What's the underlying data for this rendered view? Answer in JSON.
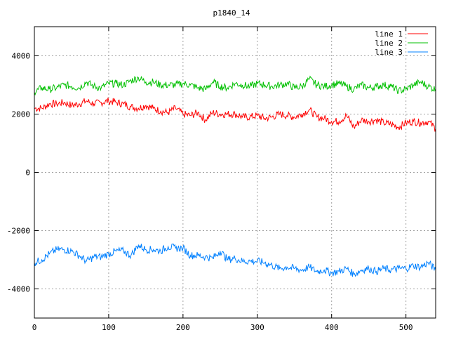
{
  "chart_data": {
    "type": "line",
    "title": "p1840_14",
    "xlabel": "",
    "ylabel": "",
    "xlim": [
      0,
      540
    ],
    "ylim": [
      -5000,
      5000
    ],
    "xticks": [
      0,
      100,
      200,
      300,
      400,
      500
    ],
    "yticks": [
      -4000,
      -2000,
      0,
      2000,
      4000
    ],
    "grid": true,
    "legend_position": "top-right",
    "x": [
      0,
      10,
      20,
      30,
      40,
      50,
      60,
      70,
      80,
      90,
      100,
      110,
      120,
      130,
      140,
      150,
      160,
      170,
      180,
      190,
      200,
      210,
      220,
      230,
      240,
      250,
      260,
      270,
      280,
      290,
      300,
      310,
      320,
      330,
      340,
      350,
      360,
      370,
      380,
      390,
      400,
      410,
      420,
      430,
      440,
      450,
      460,
      470,
      480,
      490,
      500,
      510,
      520,
      530,
      540
    ],
    "series": [
      {
        "name": "line 1",
        "color": "#ff0000",
        "values": [
          2200,
          2200,
          2350,
          2350,
          2400,
          2300,
          2350,
          2450,
          2350,
          2400,
          2450,
          2400,
          2350,
          2250,
          2200,
          2300,
          2200,
          2100,
          2050,
          2200,
          2000,
          1950,
          2050,
          1800,
          2050,
          2000,
          2000,
          2000,
          1900,
          1900,
          1950,
          1850,
          1900,
          2000,
          1950,
          1900,
          2000,
          2150,
          1900,
          1850,
          1750,
          1750,
          1950,
          1550,
          1800,
          1750,
          1800,
          1700,
          1650,
          1550,
          1700,
          1750,
          1700,
          1750,
          1500
        ]
      },
      {
        "name": "line 2",
        "color": "#00c000",
        "values": [
          2750,
          2900,
          2850,
          2900,
          3000,
          2950,
          2900,
          3100,
          2950,
          2900,
          3050,
          3050,
          3000,
          3150,
          3250,
          3100,
          3100,
          3000,
          3000,
          3000,
          3050,
          3000,
          2900,
          2850,
          3100,
          2950,
          2900,
          3050,
          3000,
          2950,
          3050,
          3000,
          2950,
          3000,
          3050,
          2900,
          2950,
          3200,
          3000,
          2950,
          3000,
          3050,
          2950,
          2850,
          3000,
          2900,
          2950,
          3000,
          2950,
          2800,
          2850,
          3000,
          3100,
          2950,
          2850
        ]
      },
      {
        "name": "line 3",
        "color": "#0080ff",
        "values": [
          -3100,
          -3000,
          -2800,
          -2650,
          -2650,
          -2700,
          -2850,
          -3050,
          -2900,
          -2900,
          -2800,
          -2700,
          -2700,
          -2850,
          -2500,
          -2650,
          -2650,
          -2700,
          -2550,
          -2600,
          -2600,
          -2850,
          -2850,
          -2900,
          -2950,
          -2700,
          -3000,
          -2950,
          -3050,
          -3050,
          -3050,
          -3100,
          -3200,
          -3300,
          -3250,
          -3300,
          -3350,
          -3250,
          -3400,
          -3350,
          -3450,
          -3400,
          -3300,
          -3500,
          -3350,
          -3300,
          -3400,
          -3300,
          -3350,
          -3300,
          -3300,
          -3200,
          -3250,
          -3100,
          -3350
        ]
      }
    ]
  }
}
